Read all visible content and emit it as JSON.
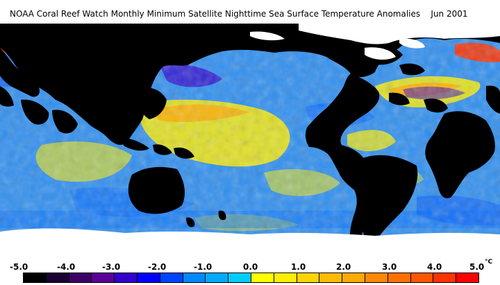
{
  "title": {
    "text": "NOAA Coral Reef Watch Monthly Minimum Satellite Nighttime Sea Surface Temperature Anomalies    Jun 2001"
  },
  "legend": {
    "ticks": [
      "-5.0",
      "-4.0",
      "-3.0",
      "-2.0",
      "-1.0",
      "0.0",
      "1.0",
      "2.0",
      "3.0",
      "4.0",
      "5.0"
    ],
    "unit": "°C",
    "colors": [
      "#000000",
      "#1a0033",
      "#3d0066",
      "#5a0099",
      "#3300cc",
      "#0000ff",
      "#0044ff",
      "#0088ff",
      "#00aaff",
      "#00ccff",
      "#ffff00",
      "#ffee00",
      "#ffd400",
      "#ffbb00",
      "#ffaa00",
      "#ff8800",
      "#ff7000",
      "#ff5500",
      "#ff3300",
      "#ff0000"
    ]
  },
  "map": {
    "land_color": "#000000",
    "ice_color": "#ffffff",
    "ocean_cool_color": "#3399ff",
    "ocean_neutral_color": "#00ccff",
    "ocean_warm_color": "#ffee00"
  }
}
